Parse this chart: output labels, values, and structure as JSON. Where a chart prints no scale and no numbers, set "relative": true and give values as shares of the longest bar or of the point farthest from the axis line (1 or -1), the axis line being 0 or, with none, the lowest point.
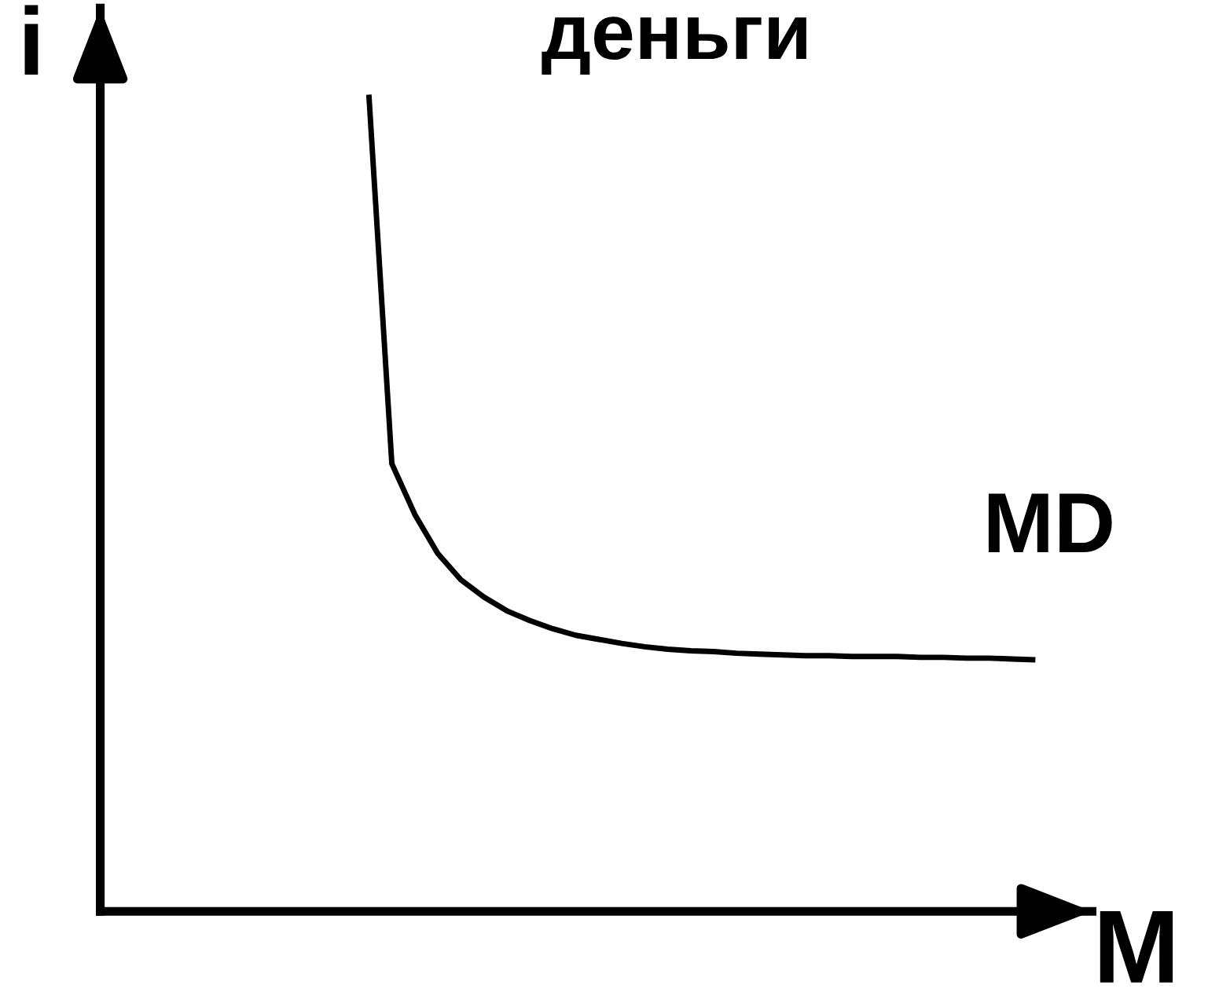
{
  "chart_data": {
    "type": "line",
    "title": "деньги",
    "xlabel": "M",
    "ylabel": "i",
    "relative": true,
    "legend": false,
    "marker": "none",
    "line_style": "solid",
    "categories": [
      null,
      null,
      null,
      null,
      null,
      null,
      null,
      null,
      null,
      null,
      null,
      null,
      null,
      null,
      null,
      null,
      null,
      null,
      null,
      null,
      null,
      null,
      null,
      null,
      null,
      null,
      null,
      null,
      null,
      null
    ],
    "series": [
      {
        "name": "MD",
        "color": "#000000",
        "values": [
          1.0,
          0.548,
          0.486,
          0.438,
          0.406,
          0.385,
          0.368,
          0.356,
          0.346,
          0.338,
          0.333,
          0.328,
          0.324,
          0.321,
          0.319,
          0.318,
          0.316,
          0.315,
          0.314,
          0.313,
          0.313,
          0.312,
          0.312,
          0.312,
          0.311,
          0.311,
          0.31,
          0.31,
          0.309,
          0.308
        ]
      }
    ]
  }
}
